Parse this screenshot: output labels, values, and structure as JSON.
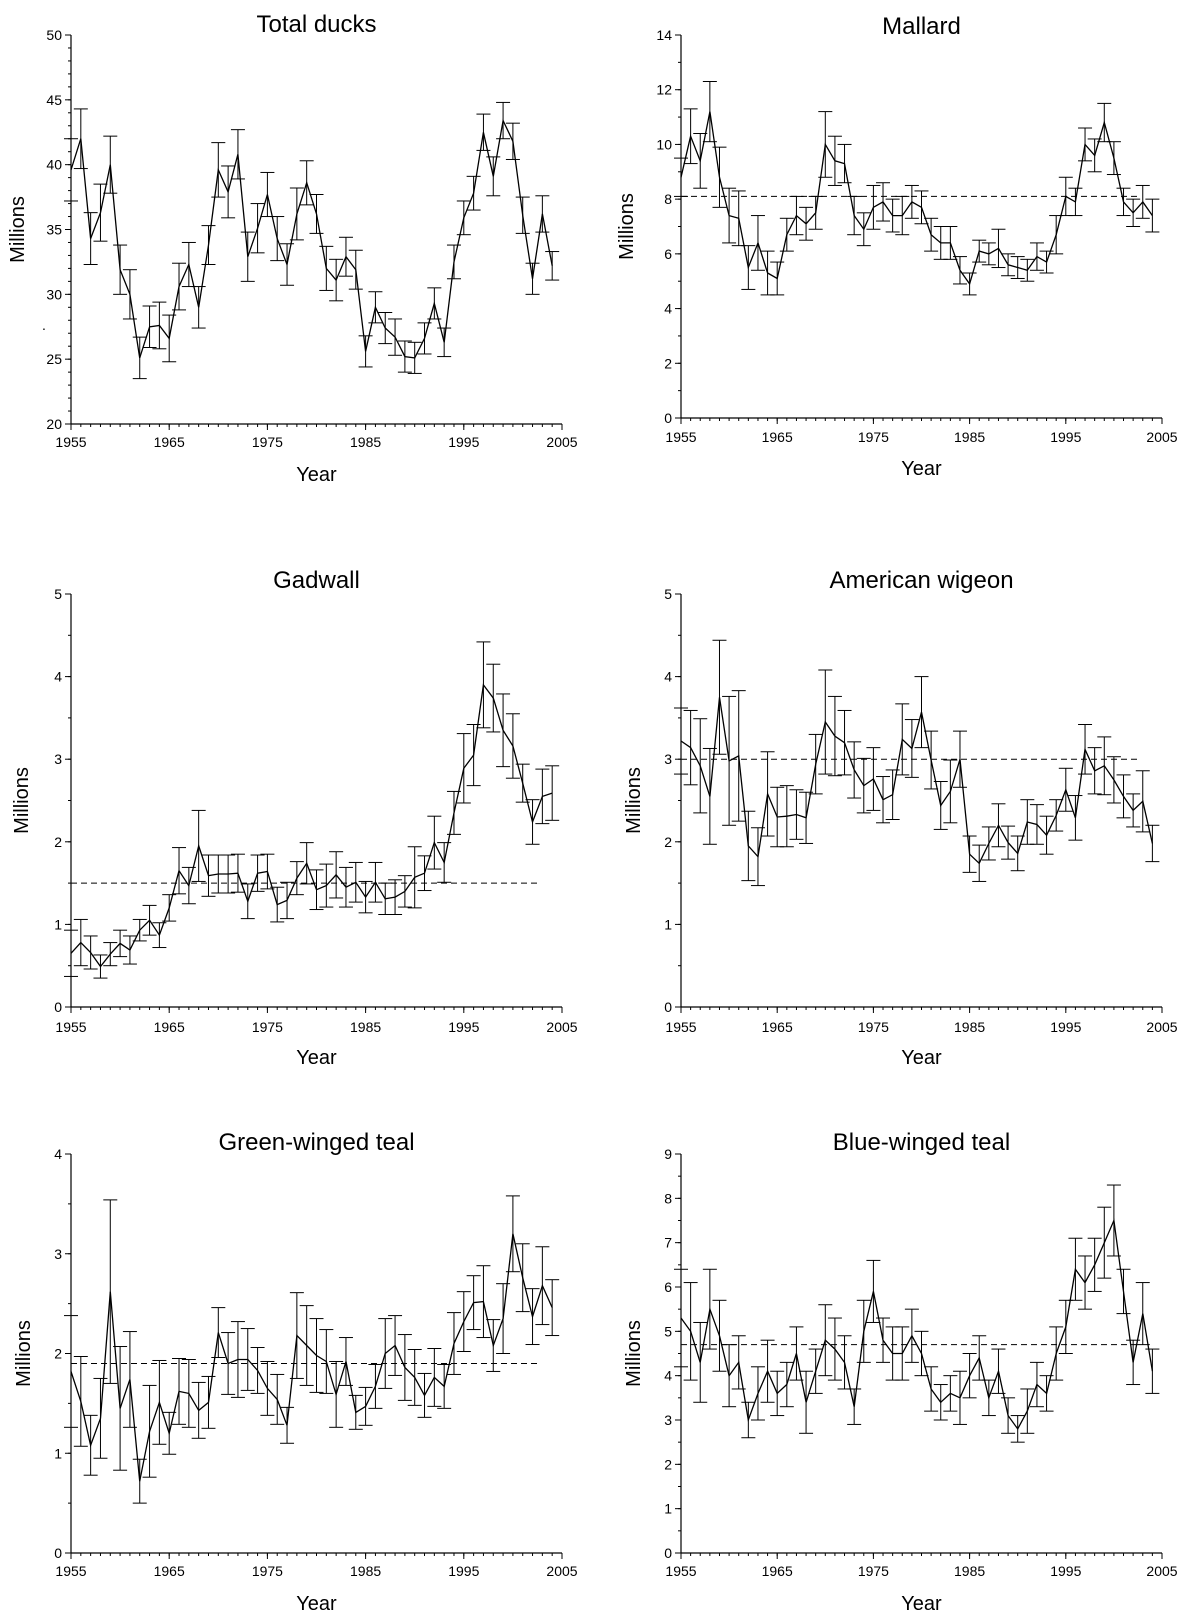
{
  "chart_data": [
    {
      "type": "line",
      "title": "Total ducks",
      "xlabel": "Year",
      "ylabel": "Millions",
      "xlim": [
        1955,
        2005
      ],
      "ylim": [
        20,
        50
      ],
      "xticks": [
        "1955",
        "1965",
        "1975",
        "1985",
        "1995",
        "2005"
      ],
      "yticks": [
        "20",
        "25",
        "30",
        "35",
        "40",
        "45",
        "50"
      ],
      "y_minor_step": 1,
      "reference_line": null,
      "stray_mark": ".",
      "series": [
        {
          "x": [
            1955,
            1956,
            1957,
            1958,
            1959,
            1960,
            1961,
            1962,
            1963,
            1964,
            1965,
            1966,
            1967,
            1968,
            1969,
            1970,
            1971,
            1972,
            1973,
            1974,
            1975,
            1976,
            1977,
            1978,
            1979,
            1980,
            1981,
            1982,
            1983,
            1984,
            1985,
            1986,
            1987,
            1988,
            1989,
            1990,
            1991,
            1992,
            1993,
            1994,
            1995,
            1996,
            1997,
            1998,
            1999,
            2000,
            2001,
            2002,
            2003,
            2004
          ],
          "values": [
            39.6,
            42.0,
            34.3,
            36.3,
            40.0,
            31.9,
            30.0,
            25.1,
            27.5,
            27.6,
            26.6,
            30.6,
            32.3,
            29.0,
            33.8,
            39.6,
            37.9,
            40.8,
            32.9,
            35.1,
            37.7,
            34.3,
            32.3,
            36.2,
            38.6,
            36.2,
            32.0,
            31.1,
            32.9,
            31.9,
            25.6,
            29.0,
            27.4,
            26.7,
            25.2,
            25.1,
            26.6,
            29.3,
            26.3,
            32.5,
            35.9,
            37.8,
            42.5,
            39.1,
            43.4,
            41.8,
            36.1,
            31.2,
            36.2,
            32.2
          ],
          "errors": [
            2.4,
            2.3,
            2.0,
            2.2,
            2.2,
            1.9,
            1.9,
            1.6,
            1.6,
            1.8,
            1.8,
            1.8,
            1.7,
            1.6,
            1.5,
            2.1,
            2.0,
            1.9,
            1.9,
            1.9,
            1.7,
            1.7,
            1.6,
            2.0,
            1.7,
            1.5,
            1.7,
            1.6,
            1.5,
            1.5,
            1.2,
            1.2,
            1.2,
            1.4,
            1.2,
            1.2,
            1.2,
            1.2,
            1.1,
            1.3,
            1.3,
            1.3,
            1.4,
            1.5,
            1.4,
            1.4,
            1.4,
            1.2,
            1.4,
            1.1
          ]
        }
      ]
    },
    {
      "type": "line",
      "title": "Mallard",
      "xlabel": "Year",
      "ylabel": "Millions",
      "xlim": [
        1955,
        2005
      ],
      "ylim": [
        0,
        14
      ],
      "xticks": [
        "1955",
        "1965",
        "1975",
        "1985",
        "1995",
        "2005"
      ],
      "yticks": [
        "0",
        "2",
        "4",
        "6",
        "8",
        "10",
        "12",
        "14"
      ],
      "y_minor_step": 1,
      "reference_line": 8.1,
      "series": [
        {
          "x": [
            1955,
            1956,
            1957,
            1958,
            1959,
            1960,
            1961,
            1962,
            1963,
            1964,
            1965,
            1966,
            1967,
            1968,
            1969,
            1970,
            1971,
            1972,
            1973,
            1974,
            1975,
            1976,
            1977,
            1978,
            1979,
            1980,
            1981,
            1982,
            1983,
            1984,
            1985,
            1986,
            1987,
            1988,
            1989,
            1990,
            1991,
            1992,
            1993,
            1994,
            1995,
            1996,
            1997,
            1998,
            1999,
            2000,
            2001,
            2002,
            2003,
            2004
          ],
          "values": [
            8.8,
            10.3,
            9.4,
            11.2,
            8.8,
            7.4,
            7.3,
            5.5,
            6.4,
            5.3,
            5.1,
            6.7,
            7.4,
            7.1,
            7.5,
            10.0,
            9.4,
            9.3,
            7.4,
            6.9,
            7.7,
            7.9,
            7.4,
            7.4,
            7.9,
            7.7,
            6.7,
            6.4,
            6.4,
            5.4,
            4.9,
            6.1,
            6.0,
            6.2,
            5.6,
            5.5,
            5.4,
            5.9,
            5.7,
            6.7,
            8.1,
            7.9,
            10.0,
            9.6,
            10.8,
            9.5,
            7.9,
            7.5,
            7.9,
            7.4
          ],
          "errors": [
            0.7,
            1.0,
            1.0,
            1.1,
            1.1,
            1.0,
            1.0,
            0.8,
            1.0,
            0.8,
            0.6,
            0.6,
            0.7,
            0.6,
            0.6,
            1.2,
            0.9,
            0.7,
            0.7,
            0.6,
            0.8,
            0.7,
            0.6,
            0.7,
            0.6,
            0.6,
            0.6,
            0.6,
            0.6,
            0.5,
            0.4,
            0.4,
            0.4,
            0.7,
            0.4,
            0.4,
            0.4,
            0.5,
            0.4,
            0.7,
            0.7,
            0.5,
            0.6,
            0.6,
            0.7,
            0.6,
            0.5,
            0.5,
            0.6,
            0.6
          ]
        }
      ]
    },
    {
      "type": "line",
      "title": "Gadwall",
      "xlabel": "Year",
      "ylabel": "Millions",
      "xlim": [
        1955,
        2005
      ],
      "ylim": [
        0,
        5
      ],
      "xticks": [
        "1955",
        "1965",
        "1975",
        "1985",
        "1995",
        "2005"
      ],
      "yticks": [
        "0",
        "1",
        "2",
        "3",
        "4",
        "5"
      ],
      "y_minor_step": 0.5,
      "reference_line": 1.5,
      "series": [
        {
          "x": [
            1955,
            1956,
            1957,
            1958,
            1959,
            1960,
            1961,
            1962,
            1963,
            1964,
            1965,
            1966,
            1967,
            1968,
            1969,
            1970,
            1971,
            1972,
            1973,
            1974,
            1975,
            1976,
            1977,
            1978,
            1979,
            1980,
            1981,
            1982,
            1983,
            1984,
            1985,
            1986,
            1987,
            1988,
            1989,
            1990,
            1991,
            1992,
            1993,
            1994,
            1995,
            1996,
            1997,
            1998,
            1999,
            2000,
            2001,
            2002,
            2003,
            2004
          ],
          "values": [
            0.65,
            0.78,
            0.66,
            0.49,
            0.64,
            0.77,
            0.69,
            0.93,
            1.05,
            0.87,
            1.2,
            1.65,
            1.47,
            1.95,
            1.59,
            1.61,
            1.61,
            1.62,
            1.28,
            1.62,
            1.64,
            1.24,
            1.29,
            1.56,
            1.74,
            1.42,
            1.47,
            1.6,
            1.45,
            1.51,
            1.33,
            1.51,
            1.31,
            1.33,
            1.4,
            1.57,
            1.62,
            1.99,
            1.75,
            2.35,
            2.89,
            3.05,
            3.9,
            3.74,
            3.35,
            3.16,
            2.71,
            2.24,
            2.55,
            2.59
          ],
          "errors": [
            0.28,
            0.28,
            0.2,
            0.14,
            0.14,
            0.16,
            0.17,
            0.13,
            0.18,
            0.15,
            0.16,
            0.28,
            0.22,
            0.43,
            0.25,
            0.23,
            0.23,
            0.23,
            0.21,
            0.22,
            0.21,
            0.21,
            0.22,
            0.2,
            0.25,
            0.24,
            0.26,
            0.28,
            0.24,
            0.24,
            0.19,
            0.24,
            0.19,
            0.21,
            0.19,
            0.37,
            0.21,
            0.32,
            0.24,
            0.26,
            0.42,
            0.37,
            0.52,
            0.41,
            0.44,
            0.39,
            0.23,
            0.27,
            0.33,
            0.33
          ]
        }
      ]
    },
    {
      "type": "line",
      "title": "American wigeon",
      "xlabel": "Year",
      "ylabel": "Millions",
      "xlim": [
        1955,
        2005
      ],
      "ylim": [
        0,
        5
      ],
      "xticks": [
        "1955",
        "1965",
        "1975",
        "1985",
        "1995",
        "2005"
      ],
      "yticks": [
        "0",
        "1",
        "2",
        "3",
        "4",
        "5"
      ],
      "y_minor_step": 0.5,
      "reference_line": 3.0,
      "series": [
        {
          "x": [
            1955,
            1956,
            1957,
            1958,
            1959,
            1960,
            1961,
            1962,
            1963,
            1964,
            1965,
            1966,
            1967,
            1968,
            1969,
            1970,
            1971,
            1972,
            1973,
            1974,
            1975,
            1976,
            1977,
            1978,
            1979,
            1980,
            1981,
            1982,
            1983,
            1984,
            1985,
            1986,
            1987,
            1988,
            1989,
            1990,
            1991,
            1992,
            1993,
            1994,
            1995,
            1996,
            1997,
            1998,
            1999,
            2000,
            2001,
            2002,
            2003,
            2004
          ],
          "values": [
            3.22,
            3.14,
            2.92,
            2.55,
            3.75,
            2.98,
            3.04,
            1.95,
            1.82,
            2.58,
            2.3,
            2.31,
            2.33,
            2.29,
            2.94,
            3.45,
            3.28,
            3.2,
            2.87,
            2.68,
            2.76,
            2.51,
            2.57,
            3.24,
            3.13,
            3.57,
            2.99,
            2.44,
            2.61,
            3.0,
            1.85,
            1.74,
            1.98,
            2.2,
            1.99,
            1.86,
            2.24,
            2.21,
            2.08,
            2.32,
            2.63,
            2.29,
            3.12,
            2.86,
            2.92,
            2.75,
            2.55,
            2.38,
            2.49,
            1.98
          ],
          "errors": [
            0.4,
            0.45,
            0.57,
            0.58,
            0.69,
            0.78,
            0.79,
            0.42,
            0.35,
            0.51,
            0.36,
            0.37,
            0.3,
            0.31,
            0.36,
            0.63,
            0.48,
            0.39,
            0.34,
            0.33,
            0.38,
            0.28,
            0.3,
            0.43,
            0.35,
            0.43,
            0.35,
            0.29,
            0.38,
            0.34,
            0.22,
            0.22,
            0.2,
            0.26,
            0.2,
            0.21,
            0.27,
            0.24,
            0.23,
            0.19,
            0.26,
            0.27,
            0.3,
            0.28,
            0.35,
            0.28,
            0.26,
            0.2,
            0.37,
            0.22
          ]
        }
      ]
    },
    {
      "type": "line",
      "title": "Green-winged teal",
      "xlabel": "Year",
      "ylabel": "Millions",
      "xlim": [
        1955,
        2005
      ],
      "ylim": [
        0,
        4
      ],
      "xticks": [
        "1955",
        "1965",
        "1975",
        "1985",
        "1995",
        "2005"
      ],
      "yticks": [
        "0",
        "1",
        "2",
        "3",
        "4"
      ],
      "y_minor_step": 0.5,
      "reference_line": 1.9,
      "series": [
        {
          "x": [
            1955,
            1956,
            1957,
            1958,
            1959,
            1960,
            1961,
            1962,
            1963,
            1964,
            1965,
            1966,
            1967,
            1968,
            1969,
            1970,
            1971,
            1972,
            1973,
            1974,
            1975,
            1976,
            1977,
            1978,
            1979,
            1980,
            1981,
            1982,
            1983,
            1984,
            1985,
            1986,
            1987,
            1988,
            1989,
            1990,
            1991,
            1992,
            1993,
            1994,
            1995,
            1996,
            1997,
            1998,
            1999,
            2000,
            2001,
            2002,
            2003,
            2004
          ],
          "values": [
            1.82,
            1.52,
            1.08,
            1.35,
            2.62,
            1.45,
            1.74,
            0.72,
            1.22,
            1.51,
            1.2,
            1.62,
            1.6,
            1.43,
            1.51,
            2.21,
            1.9,
            1.94,
            1.94,
            1.83,
            1.65,
            1.54,
            1.28,
            2.18,
            2.08,
            1.98,
            1.92,
            1.59,
            1.92,
            1.41,
            1.47,
            1.67,
            2.0,
            2.08,
            1.86,
            1.76,
            1.58,
            1.76,
            1.67,
            2.1,
            2.32,
            2.51,
            2.52,
            2.08,
            2.35,
            3.2,
            2.76,
            2.37,
            2.68,
            2.46
          ],
          "errors": [
            0.56,
            0.45,
            0.3,
            0.4,
            0.92,
            0.62,
            0.48,
            0.22,
            0.46,
            0.42,
            0.21,
            0.33,
            0.34,
            0.28,
            0.26,
            0.25,
            0.31,
            0.38,
            0.31,
            0.23,
            0.27,
            0.25,
            0.18,
            0.43,
            0.4,
            0.37,
            0.32,
            0.33,
            0.24,
            0.17,
            0.19,
            0.22,
            0.35,
            0.3,
            0.33,
            0.28,
            0.22,
            0.29,
            0.22,
            0.31,
            0.3,
            0.27,
            0.36,
            0.26,
            0.35,
            0.38,
            0.34,
            0.28,
            0.39,
            0.28
          ]
        }
      ]
    },
    {
      "type": "line",
      "title": "Blue-winged teal",
      "xlabel": "Year",
      "ylabel": "Millions",
      "xlim": [
        1955,
        2005
      ],
      "ylim": [
        0,
        9
      ],
      "xticks": [
        "1955",
        "1965",
        "1975",
        "1985",
        "1995",
        "2005"
      ],
      "yticks": [
        "0",
        "1",
        "2",
        "3",
        "4",
        "5",
        "6",
        "7",
        "8",
        "9"
      ],
      "y_minor_step": 0.5,
      "reference_line": 4.7,
      "series": [
        {
          "x": [
            1955,
            1956,
            1957,
            1958,
            1959,
            1960,
            1961,
            1962,
            1963,
            1964,
            1965,
            1966,
            1967,
            1968,
            1969,
            1970,
            1971,
            1972,
            1973,
            1974,
            1975,
            1976,
            1977,
            1978,
            1979,
            1980,
            1981,
            1982,
            1983,
            1984,
            1985,
            1986,
            1987,
            1988,
            1989,
            1990,
            1991,
            1992,
            1993,
            1994,
            1995,
            1996,
            1997,
            1998,
            1999,
            2000,
            2001,
            2002,
            2003,
            2004
          ],
          "values": [
            5.3,
            5.0,
            4.3,
            5.5,
            4.9,
            4.0,
            4.3,
            3.0,
            3.6,
            4.1,
            3.6,
            3.8,
            4.5,
            3.4,
            4.1,
            4.8,
            4.6,
            4.3,
            3.3,
            5.0,
            5.9,
            4.8,
            4.5,
            4.5,
            4.9,
            4.5,
            3.7,
            3.4,
            3.6,
            3.5,
            4.0,
            4.4,
            3.5,
            4.1,
            3.1,
            2.8,
            3.2,
            3.8,
            3.6,
            4.5,
            5.1,
            6.4,
            6.1,
            6.5,
            7.0,
            7.5,
            5.9,
            4.3,
            5.4,
            4.1
          ],
          "errors": [
            1.1,
            1.1,
            0.9,
            0.9,
            0.8,
            0.7,
            0.6,
            0.4,
            0.6,
            0.7,
            0.5,
            0.5,
            0.6,
            0.7,
            0.5,
            0.8,
            0.7,
            0.6,
            0.4,
            0.7,
            0.7,
            0.5,
            0.6,
            0.6,
            0.6,
            0.5,
            0.5,
            0.4,
            0.4,
            0.6,
            0.5,
            0.5,
            0.4,
            0.5,
            0.4,
            0.3,
            0.5,
            0.5,
            0.4,
            0.6,
            0.6,
            0.7,
            0.6,
            0.6,
            0.8,
            0.8,
            0.5,
            0.5,
            0.7,
            0.5
          ]
        }
      ]
    }
  ]
}
